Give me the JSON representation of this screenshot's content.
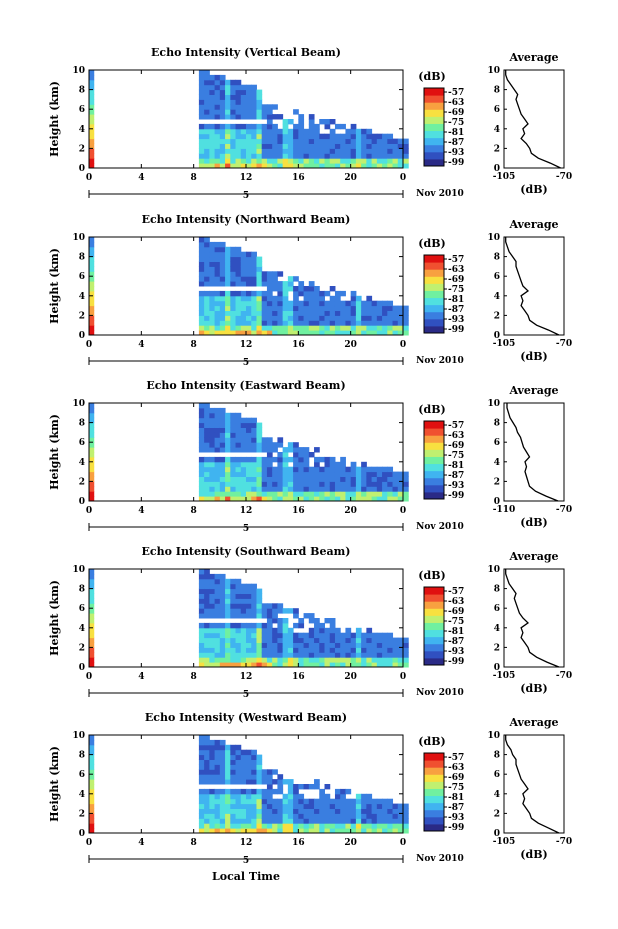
{
  "figure": {
    "x_axis_label": "Local Time",
    "month_label": "Nov 2010",
    "day_label": "5",
    "x_ticks": [
      "0",
      "4",
      "8",
      "12",
      "16",
      "20",
      "0"
    ],
    "y_axis_label": "Height (km)",
    "y_ticks": [
      "0",
      "2",
      "4",
      "6",
      "8",
      "10"
    ],
    "colorbar_unit": "(dB)",
    "avg_title": "Average",
    "avg_xlabel": "(dB)"
  },
  "colormap": [
    "#2a2a86",
    "#3050c0",
    "#3a7ee0",
    "#40b4f0",
    "#50e0e0",
    "#70f0a0",
    "#c0f070",
    "#f8e040",
    "#f8a040",
    "#f05030",
    "#e01010"
  ],
  "chart_data": [
    {
      "type": "heatmap",
      "title": "Echo Intensity (Vertical Beam)",
      "xlabel": "Local Time",
      "ylabel": "Height (km)",
      "xlim": [
        0,
        24
      ],
      "ylim": [
        0,
        10
      ],
      "colorbar_ticks": [
        "-57",
        "-63",
        "-69",
        "-75",
        "-81",
        "-87",
        "-93",
        "-99"
      ],
      "average": {
        "xlim": [
          -105,
          -70
        ],
        "xticks": [
          "-105",
          "-70"
        ],
        "height": [
          0,
          0.5,
          1,
          1.5,
          2,
          2.5,
          3,
          3.5,
          4,
          4.5,
          5,
          5.5,
          6,
          6.5,
          7,
          7.5,
          8,
          8.5,
          9,
          9.5,
          10
        ],
        "value": [
          -72,
          -78,
          -85,
          -89,
          -90,
          -92,
          -95,
          -93,
          -94,
          -91,
          -93,
          -95,
          -96,
          -97,
          -98,
          -97,
          -99,
          -101,
          -103,
          -104,
          -104
        ]
      }
    },
    {
      "type": "heatmap",
      "title": "Echo Intensity (Northward Beam)",
      "xlabel": "Local Time",
      "ylabel": "Height (km)",
      "xlim": [
        0,
        24
      ],
      "ylim": [
        0,
        10
      ],
      "colorbar_ticks": [
        "-57",
        "-63",
        "-69",
        "-75",
        "-81",
        "-87",
        "-93",
        "-99"
      ],
      "average": {
        "xlim": [
          -105,
          -70
        ],
        "xticks": [
          "-105",
          "-70"
        ],
        "height": [
          0,
          0.5,
          1,
          1.5,
          2,
          2.5,
          3,
          3.5,
          4,
          4.5,
          5,
          5.5,
          6,
          6.5,
          7,
          7.5,
          8,
          8.5,
          9,
          9.5,
          10
        ],
        "value": [
          -73,
          -79,
          -86,
          -90,
          -91,
          -93,
          -95,
          -94,
          -95,
          -91,
          -94,
          -95,
          -96,
          -97,
          -98,
          -98,
          -100,
          -102,
          -103,
          -104,
          -104
        ]
      }
    },
    {
      "type": "heatmap",
      "title": "Echo Intensity (Eastward Beam)",
      "xlabel": "Local Time",
      "ylabel": "Height (km)",
      "xlim": [
        0,
        24
      ],
      "ylim": [
        0,
        10
      ],
      "colorbar_ticks": [
        "-57",
        "-63",
        "-69",
        "-75",
        "-81",
        "-87",
        "-93",
        "-99"
      ],
      "average": {
        "xlim": [
          -110,
          -70
        ],
        "xticks": [
          "-110",
          "-70"
        ],
        "height": [
          0,
          0.5,
          1,
          1.5,
          2,
          2.5,
          3,
          3.5,
          4,
          4.5,
          5,
          5.5,
          6,
          6.5,
          7,
          7.5,
          8,
          8.5,
          9,
          9.5,
          10
        ],
        "value": [
          -74,
          -82,
          -89,
          -93,
          -94,
          -95,
          -96,
          -95,
          -96,
          -93,
          -95,
          -97,
          -98,
          -99,
          -101,
          -102,
          -104,
          -106,
          -107,
          -108,
          -108
        ]
      }
    },
    {
      "type": "heatmap",
      "title": "Echo Intensity (Southward Beam)",
      "xlabel": "Local Time",
      "ylabel": "Height (km)",
      "xlim": [
        0,
        24
      ],
      "ylim": [
        0,
        10
      ],
      "colorbar_ticks": [
        "-57",
        "-63",
        "-69",
        "-75",
        "-81",
        "-87",
        "-93",
        "-99"
      ],
      "average": {
        "xlim": [
          -105,
          -70
        ],
        "xticks": [
          "-105",
          "-70"
        ],
        "height": [
          0,
          0.5,
          1,
          1.5,
          2,
          2.5,
          3,
          3.5,
          4,
          4.5,
          5,
          5.5,
          6,
          6.5,
          7,
          7.5,
          8,
          8.5,
          9,
          9.5,
          10
        ],
        "value": [
          -73,
          -80,
          -86,
          -90,
          -91,
          -93,
          -95,
          -94,
          -95,
          -91,
          -94,
          -96,
          -97,
          -98,
          -99,
          -98,
          -100,
          -102,
          -103,
          -104,
          -104
        ]
      }
    },
    {
      "type": "heatmap",
      "title": "Echo Intensity (Westward Beam)",
      "xlabel": "Local Time",
      "ylabel": "Height (km)",
      "xlim": [
        0,
        24
      ],
      "ylim": [
        0,
        10
      ],
      "colorbar_ticks": [
        "-57",
        "-63",
        "-69",
        "-75",
        "-81",
        "-87",
        "-93",
        "-99"
      ],
      "average": {
        "xlim": [
          -105,
          -70
        ],
        "xticks": [
          "-105",
          "-70"
        ],
        "height": [
          0,
          0.5,
          1,
          1.5,
          2,
          2.5,
          3,
          3.5,
          4,
          4.5,
          5,
          5.5,
          6,
          6.5,
          7,
          7.5,
          8,
          8.5,
          9,
          9.5,
          10
        ],
        "value": [
          -73,
          -79,
          -85,
          -89,
          -90,
          -92,
          -94,
          -93,
          -94,
          -91,
          -93,
          -95,
          -96,
          -97,
          -98,
          -98,
          -100,
          -101,
          -103,
          -104,
          -104
        ]
      }
    }
  ]
}
